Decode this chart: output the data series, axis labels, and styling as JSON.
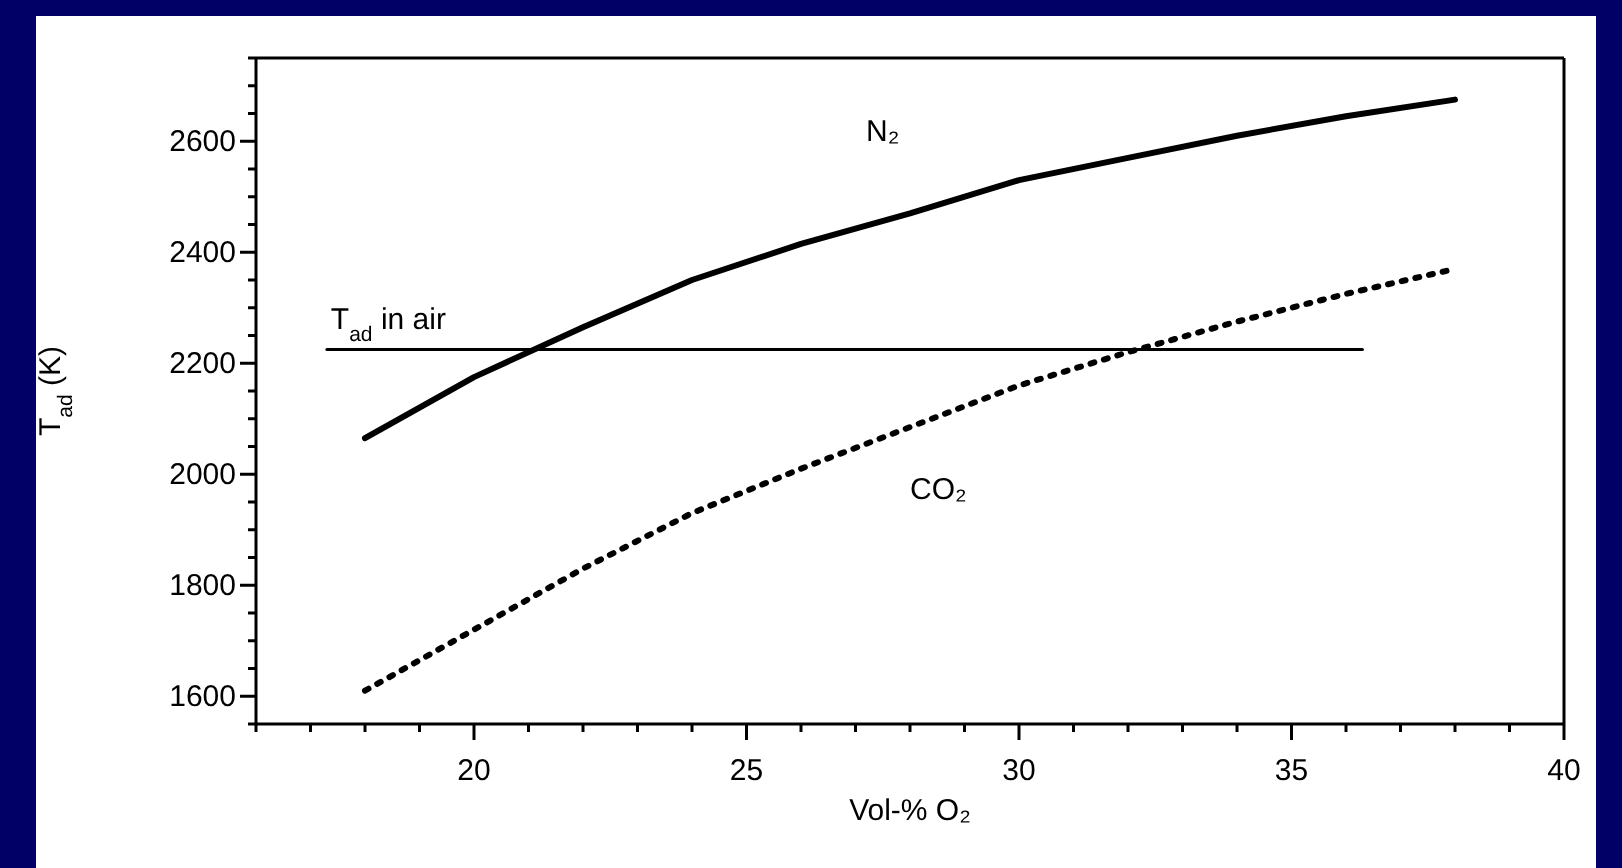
{
  "chart_data": {
    "type": "line",
    "xlabel": "Vol-% O₂",
    "ylabel": "T$_{ad}$ (K)",
    "xlim": [
      16,
      40
    ],
    "ylim": [
      1550,
      2750
    ],
    "xticks": [
      {
        "value": 16,
        "label": null
      },
      {
        "value": 17,
        "label": null
      },
      {
        "value": 18,
        "label": null
      },
      {
        "value": 19,
        "label": null
      },
      20,
      {
        "value": 21,
        "label": null
      },
      {
        "value": 22,
        "label": null
      },
      {
        "value": 23,
        "label": null
      },
      {
        "value": 24,
        "label": null
      },
      25,
      {
        "value": 26,
        "label": null
      },
      {
        "value": 27,
        "label": null
      },
      {
        "value": 28,
        "label": null
      },
      {
        "value": 29,
        "label": null
      },
      30,
      {
        "value": 31,
        "label": null
      },
      {
        "value": 32,
        "label": null
      },
      {
        "value": 33,
        "label": null
      },
      {
        "value": 34,
        "label": null
      },
      35,
      {
        "value": 36,
        "label": null
      },
      {
        "value": 37,
        "label": null
      },
      {
        "value": 38,
        "label": null
      },
      {
        "value": 39,
        "label": null
      },
      40
    ],
    "yticks": [
      {
        "value": 1550,
        "label": null
      },
      1600,
      {
        "value": 1650,
        "label": null
      },
      {
        "value": 1700,
        "label": null
      },
      {
        "value": 1750,
        "label": null
      },
      1800,
      {
        "value": 1850,
        "label": null
      },
      {
        "value": 1900,
        "label": null
      },
      {
        "value": 1950,
        "label": null
      },
      2000,
      {
        "value": 2050,
        "label": null
      },
      {
        "value": 2100,
        "label": null
      },
      {
        "value": 2150,
        "label": null
      },
      2200,
      {
        "value": 2250,
        "label": null
      },
      {
        "value": 2300,
        "label": null
      },
      {
        "value": 2350,
        "label": null
      },
      2400,
      {
        "value": 2450,
        "label": null
      },
      {
        "value": 2500,
        "label": null
      },
      {
        "value": 2550,
        "label": null
      },
      2600,
      {
        "value": 2650,
        "label": null
      },
      {
        "value": 2700,
        "label": null
      },
      {
        "value": 2750,
        "label": null
      }
    ],
    "marker": "none",
    "series": [
      {
        "name": "N₂",
        "color": "#000000",
        "line_style": "solid",
        "x": [
          18,
          20,
          22,
          24,
          26,
          28,
          30,
          32,
          34,
          36,
          38
        ],
        "values": [
          2065,
          2175,
          2265,
          2350,
          2415,
          2470,
          2530,
          2570,
          2610,
          2645,
          2675
        ]
      },
      {
        "name": "CO₂",
        "color": "#000000",
        "line_style": "dotted",
        "x": [
          18,
          20,
          22,
          24,
          26,
          28,
          30,
          32,
          34,
          36,
          38
        ],
        "values": [
          1610,
          1720,
          1830,
          1930,
          2010,
          2085,
          2160,
          2220,
          2275,
          2325,
          2370
        ]
      },
      {
        "name": "T$_{ad}$ in air",
        "color": "#000000",
        "line_style": "solid",
        "x": [
          17.3,
          36.3
        ],
        "values": [
          2225,
          2225
        ]
      }
    ]
  }
}
